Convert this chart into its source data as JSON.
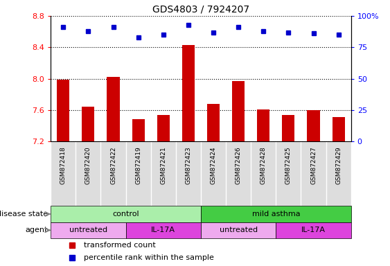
{
  "title": "GDS4803 / 7924207",
  "samples": [
    "GSM872418",
    "GSM872420",
    "GSM872422",
    "GSM872419",
    "GSM872421",
    "GSM872423",
    "GSM872424",
    "GSM872426",
    "GSM872428",
    "GSM872425",
    "GSM872427",
    "GSM872429"
  ],
  "bar_values": [
    7.99,
    7.64,
    8.02,
    7.48,
    7.54,
    8.43,
    7.68,
    7.97,
    7.61,
    7.54,
    7.6,
    7.51
  ],
  "percentile_values": [
    91,
    88,
    91,
    83,
    85,
    93,
    87,
    91,
    88,
    87,
    86,
    85
  ],
  "ylim_left": [
    7.2,
    8.8
  ],
  "yticks_left": [
    7.2,
    7.6,
    8.0,
    8.4,
    8.8
  ],
  "ylim_right": [
    0,
    100
  ],
  "yticks_right": [
    0,
    25,
    50,
    75,
    100
  ],
  "bar_color": "#cc0000",
  "dot_color": "#0000cc",
  "bar_width": 0.5,
  "disease_state_groups": [
    {
      "label": "control",
      "start": 0,
      "end": 6,
      "color": "#aaeea a"
    },
    {
      "label": "mild asthma",
      "start": 6,
      "end": 12,
      "color": "#44cc44"
    }
  ],
  "agent_groups": [
    {
      "label": "untreated",
      "start": 0,
      "end": 3,
      "color": "#eeaaee"
    },
    {
      "label": "IL-17A",
      "start": 3,
      "end": 6,
      "color": "#dd44dd"
    },
    {
      "label": "untreated",
      "start": 6,
      "end": 9,
      "color": "#eeaaee"
    },
    {
      "label": "IL-17A",
      "start": 9,
      "end": 12,
      "color": "#dd44dd"
    }
  ],
  "legend_bar_label": "transformed count",
  "legend_dot_label": "percentile rank within the sample",
  "disease_state_label": "disease state",
  "agent_label": "agent"
}
